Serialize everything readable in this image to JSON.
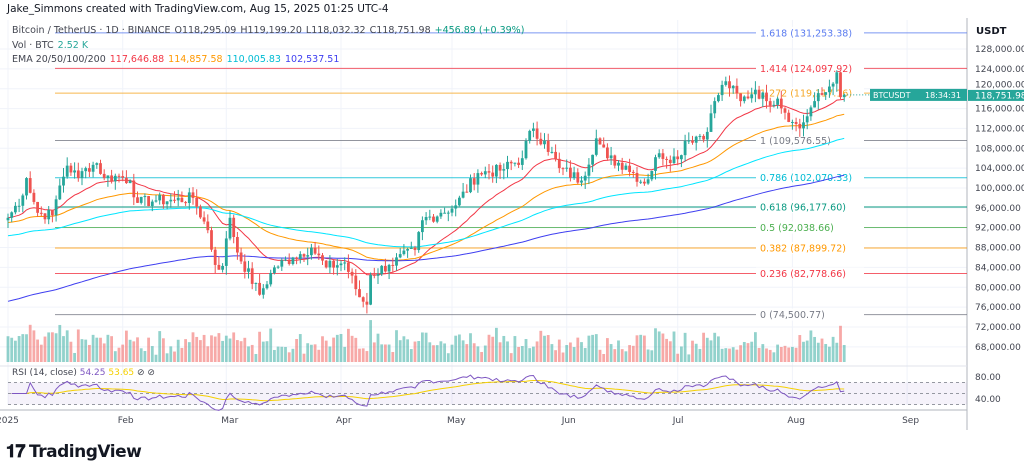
{
  "credit": "Jake_Simmons created with TradingView.com, Aug 15, 2025 01:25 UTC-4",
  "symbol": {
    "name": "Bitcoin / TetherUS · 1D · BINANCE",
    "o": "O118,295.09",
    "h": "H119,199.20",
    "l": "L118,032.32",
    "c": "C118,751.98",
    "chg": "+456.89 (+0.39%)"
  },
  "volume": {
    "label": "Vol · BTC",
    "value": "2.52 K"
  },
  "ema": {
    "label": "EMA 20/50/100/200",
    "values": [
      "117,646.88",
      "114,857.58",
      "110,005.83",
      "102,537.51"
    ],
    "colors": [
      "#f23645",
      "#ff9800",
      "#00e5ff",
      "#3f3ff0"
    ]
  },
  "price_axis": {
    "unit": "USDT",
    "ticks": [
      "128,000.00",
      "124,000.00",
      "120,000.00",
      "116,000.00",
      "112,000.00",
      "108,000.00",
      "104,000.00",
      "100,000.00",
      "96,000.00",
      "92,000.00",
      "88,000.00",
      "84,000.00",
      "80,000.00",
      "76,000.00",
      "72,000.00",
      "68,000.00"
    ]
  },
  "last_price": {
    "ticker": "BTCUSDT",
    "price": "118,751.98",
    "countdown": "18:34:31",
    "color": "#26a69a"
  },
  "rsi": {
    "label": "RSI (14, close)",
    "value": "54.25",
    "ma": "53.65",
    "ticks": [
      "80.00",
      "40.00"
    ]
  },
  "time_axis": [
    "2025",
    "Feb",
    "Mar",
    "Apr",
    "May",
    "Jun",
    "Jul",
    "Aug",
    "Sep"
  ],
  "logo": "TradingView",
  "chart_data": {
    "type": "candlestick",
    "x_axis": "date (2025)",
    "ylim": [
      66000,
      132000
    ],
    "closes": [
      [
        "01-01",
        94000
      ],
      [
        "01-05",
        98500
      ],
      [
        "01-06",
        102000
      ],
      [
        "01-09",
        95000
      ],
      [
        "01-13",
        94500
      ],
      [
        "01-15",
        100500
      ],
      [
        "01-17",
        104500
      ],
      [
        "01-20",
        102000
      ],
      [
        "01-22",
        104000
      ],
      [
        "01-25",
        105000
      ],
      [
        "01-27",
        102000
      ],
      [
        "01-31",
        102400
      ],
      [
        "02-03",
        101500
      ],
      [
        "02-05",
        97000
      ],
      [
        "02-10",
        97500
      ],
      [
        "02-15",
        97500
      ],
      [
        "02-20",
        98000
      ],
      [
        "02-24",
        91500
      ],
      [
        "02-26",
        84500
      ],
      [
        "02-28",
        84300
      ],
      [
        "03-02",
        94000
      ],
      [
        "03-04",
        87000
      ],
      [
        "03-10",
        78500
      ],
      [
        "03-14",
        84000
      ],
      [
        "03-19",
        86000
      ],
      [
        "03-24",
        88000
      ],
      [
        "03-28",
        84000
      ],
      [
        "04-02",
        85000
      ],
      [
        "04-06",
        78000
      ],
      [
        "04-08",
        76500
      ],
      [
        "04-09",
        82500
      ],
      [
        "04-14",
        84500
      ],
      [
        "04-21",
        87500
      ],
      [
        "04-23",
        93500
      ],
      [
        "04-28",
        95000
      ],
      [
        "05-02",
        96500
      ],
      [
        "05-08",
        103000
      ],
      [
        "05-14",
        103500
      ],
      [
        "05-20",
        106000
      ],
      [
        "05-22",
        111500
      ],
      [
        "05-26",
        109500
      ],
      [
        "05-30",
        104000
      ],
      [
        "06-05",
        101500
      ],
      [
        "06-09",
        110000
      ],
      [
        "06-12",
        106000
      ],
      [
        "06-17",
        104500
      ],
      [
        "06-22",
        100900
      ],
      [
        "06-26",
        107000
      ],
      [
        "07-01",
        105800
      ],
      [
        "07-03",
        109500
      ],
      [
        "07-09",
        111300
      ],
      [
        "07-11",
        117500
      ],
      [
        "07-14",
        121500
      ],
      [
        "07-18",
        117500
      ],
      [
        "07-22",
        119800
      ],
      [
        "07-25",
        117500
      ],
      [
        "07-28",
        118000
      ],
      [
        "08-01",
        113300
      ],
      [
        "08-03",
        112000
      ],
      [
        "08-07",
        117500
      ],
      [
        "08-10",
        119300
      ],
      [
        "08-13",
        123300
      ],
      [
        "08-14",
        118300
      ],
      [
        "08-15",
        118752
      ]
    ],
    "fib_levels": [
      {
        "ratio": "1.618",
        "price": 131253.38,
        "label": "1.618 (131,253.38)",
        "color": "#5b7cf0"
      },
      {
        "ratio": "1.414",
        "price": 124097.92,
        "label": "1.414 (124,097.92)",
        "color": "#f23645"
      },
      {
        "ratio": "1.272",
        "price": 119117.16,
        "label": "1.272 (119,117.16)",
        "color": "#f5a623"
      },
      {
        "ratio": "1",
        "price": 109576.55,
        "label": "1 (109,576.55)",
        "color": "#787b86"
      },
      {
        "ratio": "0.786",
        "price": 102070.33,
        "label": "0.786 (102,070.33)",
        "color": "#00bcd4"
      },
      {
        "ratio": "0.618",
        "price": 96177.6,
        "label": "0.618 (96,177.60)",
        "color": "#089981"
      },
      {
        "ratio": "0.5",
        "price": 92038.66,
        "label": "0.5 (92,038.66)",
        "color": "#4caf50"
      },
      {
        "ratio": "0.382",
        "price": 87899.72,
        "label": "0.382 (87,899.72)",
        "color": "#ff9800"
      },
      {
        "ratio": "0.236",
        "price": 82778.66,
        "label": "0.236 (82,778.66)",
        "color": "#f23645"
      },
      {
        "ratio": "0",
        "price": 74500.77,
        "label": "0 (74,500.77)",
        "color": "#787b86"
      }
    ],
    "up_color": "#26a69a",
    "down_color": "#ef5350"
  }
}
